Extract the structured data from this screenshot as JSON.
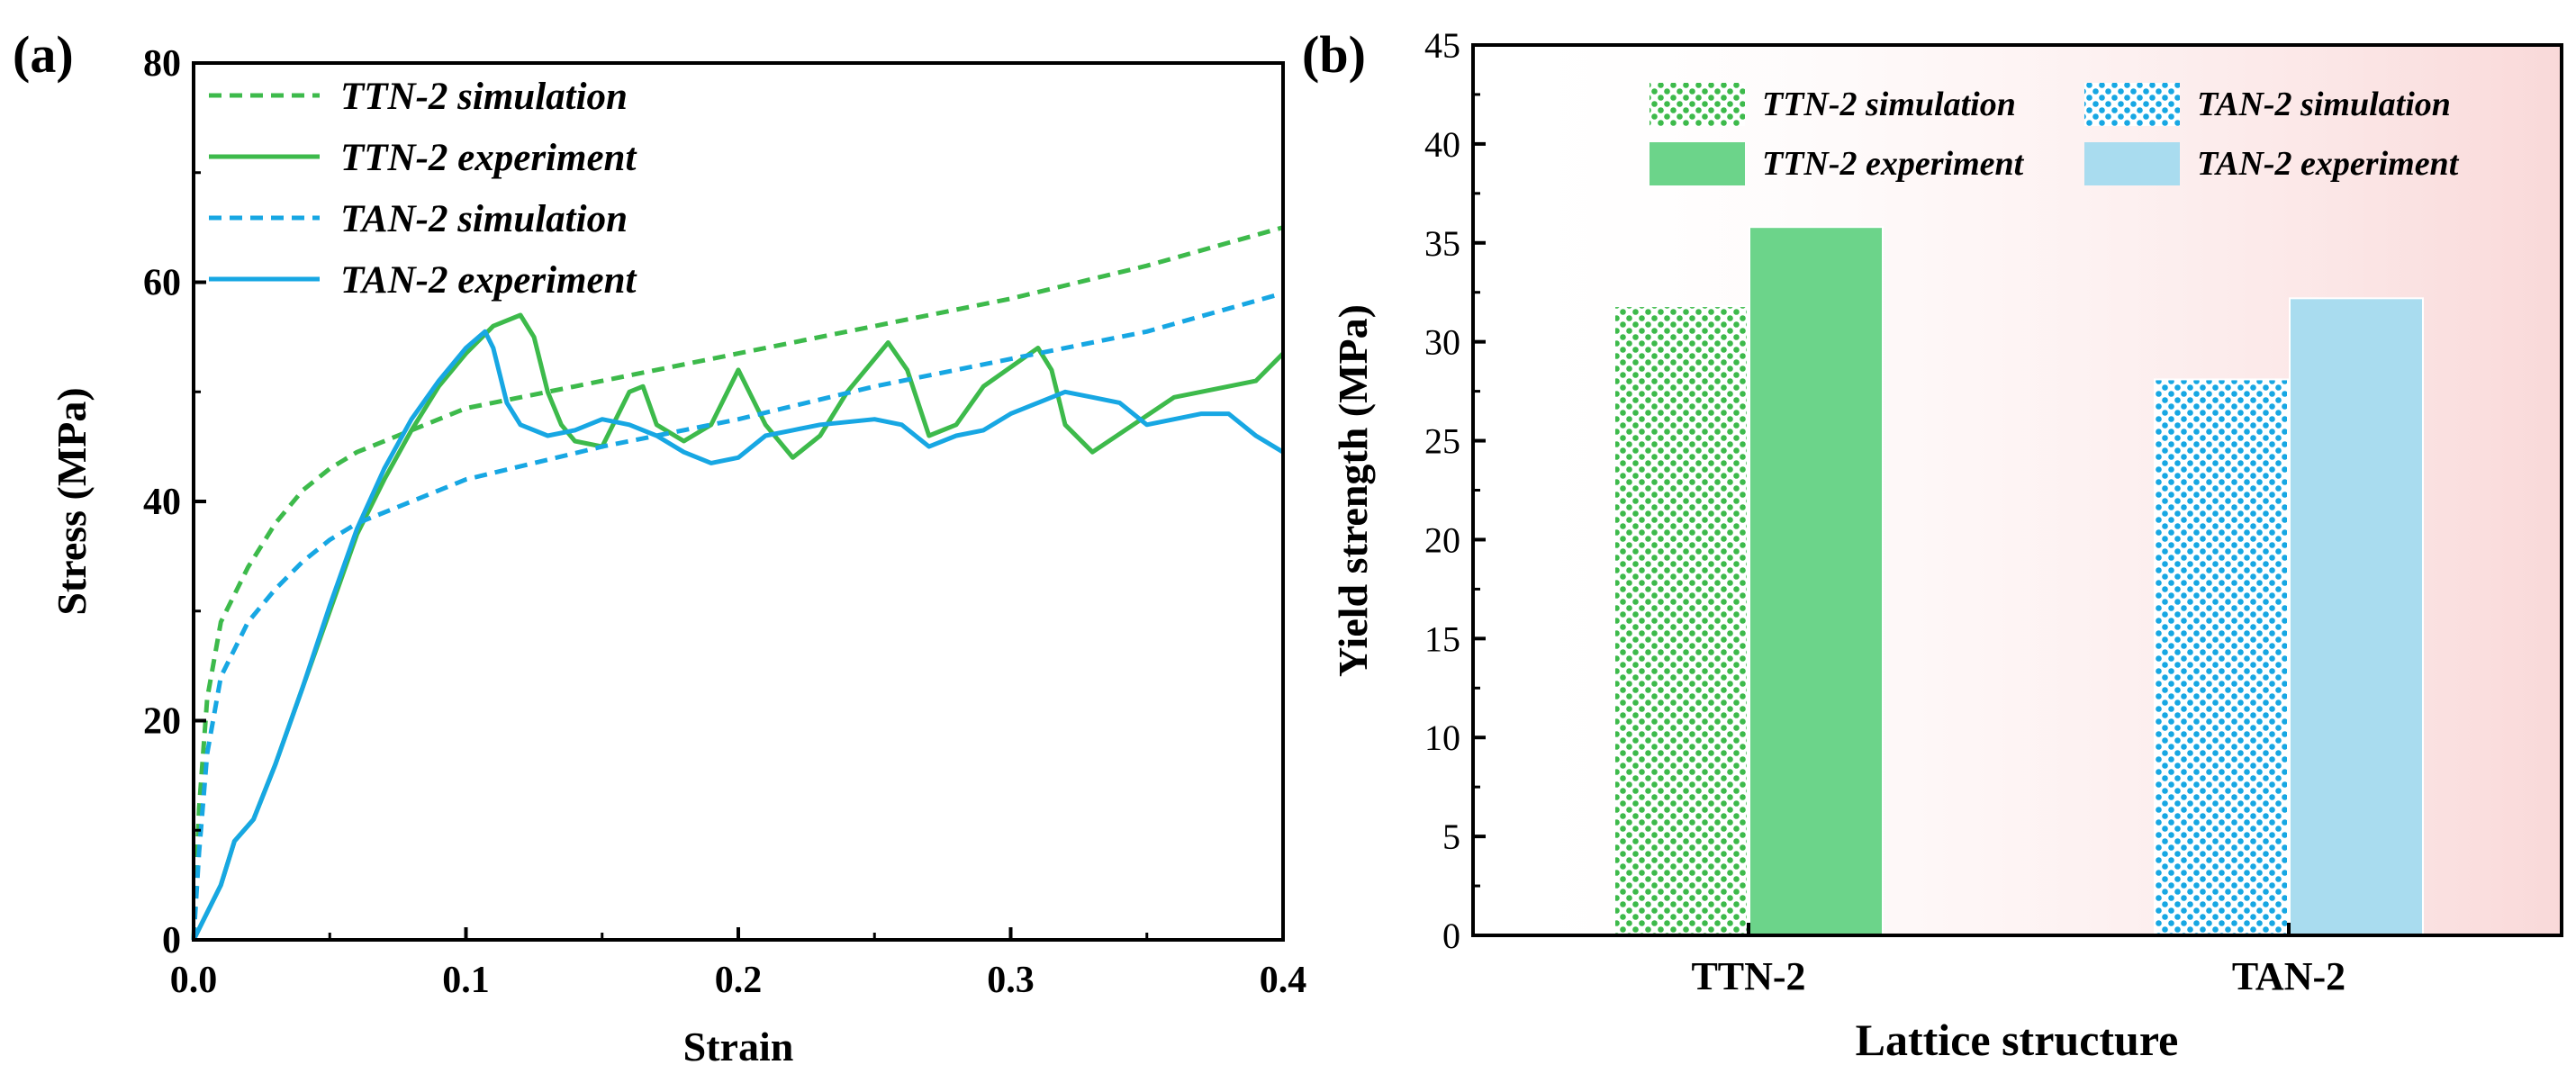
{
  "colors": {
    "green": "#3dba4b",
    "green_fill": "#6cd48a",
    "blue": "#17a7e3",
    "blue_fill": "#a9dcef",
    "axis": "#000000"
  },
  "chart_data": [
    {
      "panel_label": "(a)",
      "type": "line",
      "title": "",
      "xlabel": "Strain",
      "ylabel": "Stress (MPa)",
      "xlim": [
        0,
        0.4
      ],
      "ylim": [
        0,
        80
      ],
      "xticks": [
        0.0,
        0.1,
        0.2,
        0.3,
        0.4
      ],
      "xtick_labels": [
        "0.0",
        "0.1",
        "0.2",
        "0.3",
        "0.4"
      ],
      "yticks": [
        0,
        20,
        40,
        60,
        80
      ],
      "ytick_labels": [
        "0",
        "20",
        "40",
        "60",
        "80"
      ],
      "legend_position": "top-left",
      "series": [
        {
          "name": "TTN-2 simulation",
          "color": "green",
          "style": "dashed",
          "points": [
            [
              0,
              0
            ],
            [
              0.002,
              12
            ],
            [
              0.005,
              22
            ],
            [
              0.01,
              29
            ],
            [
              0.02,
              34
            ],
            [
              0.03,
              38
            ],
            [
              0.04,
              41
            ],
            [
              0.05,
              43
            ],
            [
              0.06,
              44.5
            ],
            [
              0.08,
              46.5
            ],
            [
              0.1,
              48.5
            ],
            [
              0.15,
              51
            ],
            [
              0.2,
              53.5
            ],
            [
              0.25,
              56
            ],
            [
              0.3,
              58.5
            ],
            [
              0.35,
              61.5
            ],
            [
              0.4,
              65
            ]
          ]
        },
        {
          "name": "TTN-2 experiment",
          "color": "green",
          "style": "solid",
          "points": [
            [
              0,
              0
            ],
            [
              0.01,
              5
            ],
            [
              0.015,
              9
            ],
            [
              0.022,
              11
            ],
            [
              0.03,
              16
            ],
            [
              0.04,
              23
            ],
            [
              0.05,
              30
            ],
            [
              0.06,
              37
            ],
            [
              0.07,
              42
            ],
            [
              0.08,
              46.5
            ],
            [
              0.09,
              50.5
            ],
            [
              0.1,
              53.5
            ],
            [
              0.11,
              56
            ],
            [
              0.12,
              57
            ],
            [
              0.125,
              55
            ],
            [
              0.13,
              50
            ],
            [
              0.135,
              47
            ],
            [
              0.14,
              45.5
            ],
            [
              0.15,
              45
            ],
            [
              0.16,
              50
            ],
            [
              0.165,
              50.5
            ],
            [
              0.17,
              47
            ],
            [
              0.18,
              45.5
            ],
            [
              0.19,
              47
            ],
            [
              0.2,
              52
            ],
            [
              0.21,
              47
            ],
            [
              0.22,
              44
            ],
            [
              0.23,
              46
            ],
            [
              0.24,
              50
            ],
            [
              0.255,
              54.5
            ],
            [
              0.262,
              52
            ],
            [
              0.27,
              46
            ],
            [
              0.28,
              47
            ],
            [
              0.29,
              50.5
            ],
            [
              0.31,
              54
            ],
            [
              0.315,
              52
            ],
            [
              0.32,
              47
            ],
            [
              0.33,
              44.5
            ],
            [
              0.345,
              47
            ],
            [
              0.36,
              49.5
            ],
            [
              0.38,
              50.5
            ],
            [
              0.39,
              51
            ],
            [
              0.4,
              53.5
            ]
          ]
        },
        {
          "name": "TAN-2 simulation",
          "color": "blue",
          "style": "dashed",
          "points": [
            [
              0,
              0
            ],
            [
              0.002,
              8
            ],
            [
              0.005,
              17
            ],
            [
              0.01,
              24
            ],
            [
              0.02,
              29
            ],
            [
              0.03,
              32
            ],
            [
              0.04,
              34.5
            ],
            [
              0.05,
              36.5
            ],
            [
              0.06,
              38
            ],
            [
              0.08,
              40
            ],
            [
              0.1,
              42
            ],
            [
              0.15,
              45
            ],
            [
              0.2,
              47.5
            ],
            [
              0.25,
              50.5
            ],
            [
              0.3,
              53
            ],
            [
              0.35,
              55.5
            ],
            [
              0.4,
              59
            ]
          ]
        },
        {
          "name": "TAN-2 experiment",
          "color": "blue",
          "style": "solid",
          "points": [
            [
              0,
              0
            ],
            [
              0.01,
              5
            ],
            [
              0.015,
              9
            ],
            [
              0.022,
              11
            ],
            [
              0.03,
              16
            ],
            [
              0.04,
              23
            ],
            [
              0.05,
              30.5
            ],
            [
              0.06,
              37.5
            ],
            [
              0.07,
              43
            ],
            [
              0.08,
              47.5
            ],
            [
              0.09,
              51
            ],
            [
              0.1,
              54
            ],
            [
              0.107,
              55.5
            ],
            [
              0.11,
              54
            ],
            [
              0.115,
              49
            ],
            [
              0.12,
              47
            ],
            [
              0.13,
              46
            ],
            [
              0.14,
              46.5
            ],
            [
              0.15,
              47.5
            ],
            [
              0.16,
              47
            ],
            [
              0.17,
              46
            ],
            [
              0.18,
              44.5
            ],
            [
              0.19,
              43.5
            ],
            [
              0.2,
              44
            ],
            [
              0.21,
              46
            ],
            [
              0.22,
              46.5
            ],
            [
              0.23,
              47
            ],
            [
              0.25,
              47.5
            ],
            [
              0.26,
              47
            ],
            [
              0.27,
              45
            ],
            [
              0.28,
              46
            ],
            [
              0.29,
              46.5
            ],
            [
              0.3,
              48
            ],
            [
              0.31,
              49
            ],
            [
              0.32,
              50
            ],
            [
              0.33,
              49.5
            ],
            [
              0.34,
              49
            ],
            [
              0.35,
              47
            ],
            [
              0.36,
              47.5
            ],
            [
              0.37,
              48
            ],
            [
              0.38,
              48
            ],
            [
              0.39,
              46
            ],
            [
              0.4,
              44.5
            ]
          ]
        }
      ]
    },
    {
      "panel_label": "(b)",
      "type": "bar",
      "title": "",
      "xlabel": "Lattice structure",
      "ylabel": "Yield strength (MPa)",
      "ylim": [
        0,
        45
      ],
      "yticks": [
        0,
        5,
        10,
        15,
        20,
        25,
        30,
        35,
        40,
        45
      ],
      "ytick_labels": [
        "0",
        "5",
        "10",
        "15",
        "20",
        "25",
        "30",
        "35",
        "40",
        "45"
      ],
      "categories": [
        "TTN-2",
        "TAN-2"
      ],
      "legend_position": "top",
      "series": [
        {
          "name": "TTN-2 simulation",
          "color": "green",
          "pattern": "checker",
          "category": "TTN-2",
          "value": 31.8
        },
        {
          "name": "TTN-2 experiment",
          "color": "green_fill",
          "pattern": "solid",
          "category": "TTN-2",
          "value": 35.8
        },
        {
          "name": "TAN-2 simulation",
          "color": "blue",
          "pattern": "checker",
          "category": "TAN-2",
          "value": 28.1
        },
        {
          "name": "TAN-2 experiment",
          "color": "blue_fill",
          "pattern": "solid",
          "category": "TAN-2",
          "value": 32.2
        }
      ]
    }
  ]
}
